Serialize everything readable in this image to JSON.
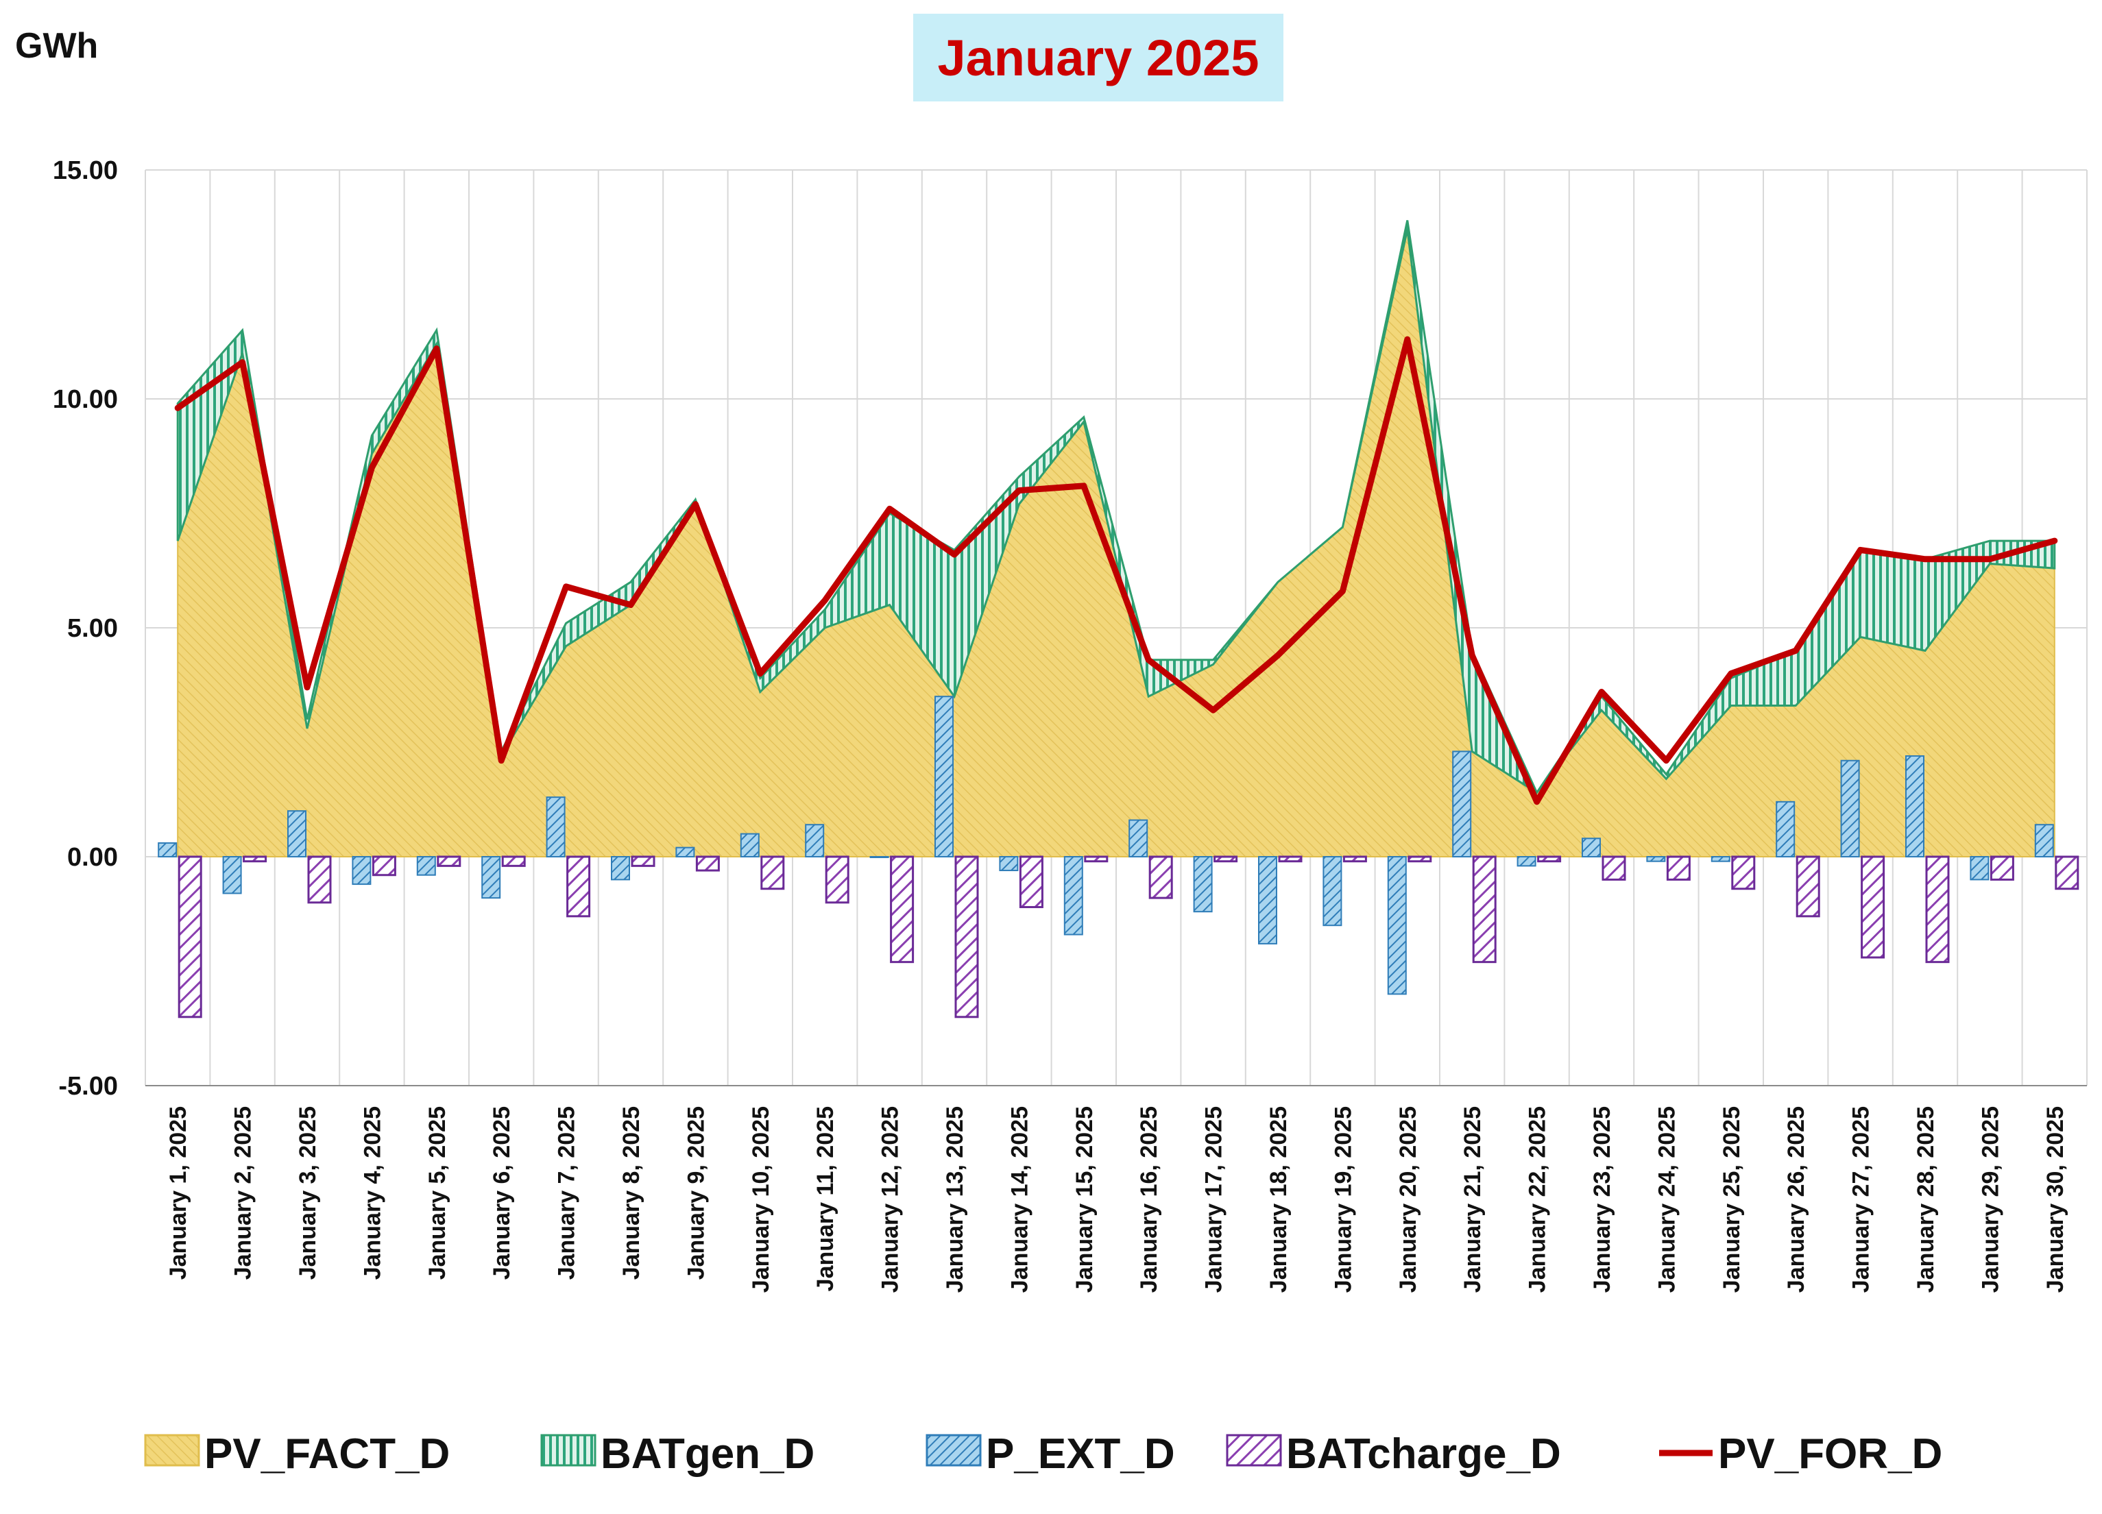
{
  "chart_data": {
    "type": "area",
    "title": "January 2025",
    "ylabel": "GWh",
    "xlabel": "",
    "ylim": [
      -5,
      15
    ],
    "yticks": [
      "15.00",
      "10.00",
      "5.00",
      "0.00",
      "-5.00"
    ],
    "ytick_values": [
      15,
      10,
      5,
      0,
      -5
    ],
    "grid": true,
    "legend_position": "bottom",
    "categories": [
      "January 1, 2025",
      "January 2, 2025",
      "January 3, 2025",
      "January 4, 2025",
      "January 5, 2025",
      "January 6, 2025",
      "January 7, 2025",
      "January 8, 2025",
      "January 9, 2025",
      "January 10, 2025",
      "January 11, 2025",
      "January 12, 2025",
      "January 13, 2025",
      "January 14, 2025",
      "January 15, 2025",
      "January 16, 2025",
      "January 17, 2025",
      "January 18, 2025",
      "January 19, 2025",
      "January 20, 2025",
      "January 21, 2025",
      "January 22, 2025",
      "January 23, 2025",
      "January 24, 2025",
      "January 25, 2025",
      "January 26, 2025",
      "January 27, 2025",
      "January 28, 2025",
      "January 29, 2025",
      "January 30, 2025"
    ],
    "series": [
      {
        "name": "PV_FACT_D",
        "kind": "stacked-area",
        "color": "#f2d77a",
        "values": [
          6.9,
          11.0,
          2.8,
          8.8,
          11.2,
          2.2,
          4.6,
          5.5,
          7.8,
          3.6,
          5.0,
          5.5,
          3.5,
          7.7,
          9.5,
          3.5,
          4.2,
          6.0,
          7.2,
          13.7,
          2.3,
          1.4,
          3.2,
          1.7,
          3.3,
          3.3,
          4.8,
          4.5,
          6.4,
          6.3
        ]
      },
      {
        "name": "BATgen_D",
        "kind": "stacked-area",
        "color": "#3fb59c",
        "values": [
          3.0,
          0.5,
          0.2,
          0.4,
          0.3,
          0.1,
          0.5,
          0.5,
          0.0,
          0.3,
          0.4,
          2.0,
          3.2,
          0.6,
          0.1,
          0.8,
          0.1,
          0.0,
          0.0,
          0.2,
          2.2,
          0.0,
          0.3,
          0.1,
          0.6,
          1.2,
          1.9,
          2.0,
          0.5,
          0.6
        ]
      },
      {
        "name": "P_EXT_D",
        "kind": "bar",
        "color": "#5aa6d8",
        "values": [
          0.3,
          -0.8,
          1.0,
          -0.6,
          -0.4,
          -0.9,
          1.3,
          -0.5,
          0.2,
          0.5,
          0.7,
          0.0,
          3.5,
          -0.3,
          -1.7,
          0.8,
          -1.2,
          -1.9,
          -1.5,
          -3.0,
          2.3,
          -0.2,
          0.4,
          -0.1,
          -0.1,
          1.2,
          2.1,
          2.2,
          -0.5,
          0.7
        ]
      },
      {
        "name": "BATcharge_D",
        "kind": "bar",
        "color": "#8a3fb0",
        "values": [
          -3.5,
          -0.1,
          -1.0,
          -0.4,
          -0.2,
          -0.2,
          -1.3,
          -0.2,
          -0.3,
          -0.7,
          -1.0,
          -2.3,
          -3.5,
          -1.1,
          -0.1,
          -0.9,
          -0.1,
          -0.1,
          -0.1,
          -0.1,
          -2.3,
          -0.1,
          -0.5,
          -0.5,
          -0.7,
          -1.3,
          -2.2,
          -2.3,
          -0.5,
          -0.7
        ]
      },
      {
        "name": "PV_FOR_D",
        "kind": "line",
        "color": "#c00000",
        "values": [
          9.8,
          10.8,
          3.7,
          8.5,
          11.1,
          2.1,
          5.9,
          5.5,
          7.7,
          4.0,
          5.6,
          7.6,
          6.6,
          8.0,
          8.1,
          4.3,
          3.2,
          4.4,
          5.8,
          11.3,
          4.4,
          1.2,
          3.6,
          2.1,
          4.0,
          4.5,
          6.7,
          6.5,
          6.5,
          6.9
        ]
      }
    ],
    "colors": {
      "title_background": "#c8eef8",
      "title_text": "#cc0000",
      "grid": "#d8d8d8",
      "axis": "#8a8a8a",
      "area_outline": "#2e9e6e",
      "bar_outline_ext": "#2f7db8",
      "bar_outline_charge": "#6a2a96"
    },
    "legend": [
      {
        "name": "PV_FACT_D",
        "icon": "yellow-hatched-area-swatch"
      },
      {
        "name": "BATgen_D",
        "icon": "green-vertical-hatched-swatch"
      },
      {
        "name": "P_EXT_D",
        "icon": "blue-hatched-bar-swatch"
      },
      {
        "name": "BATcharge_D",
        "icon": "purple-hatched-bar-swatch"
      },
      {
        "name": "PV_FOR_D",
        "icon": "red-line-swatch"
      }
    ]
  }
}
